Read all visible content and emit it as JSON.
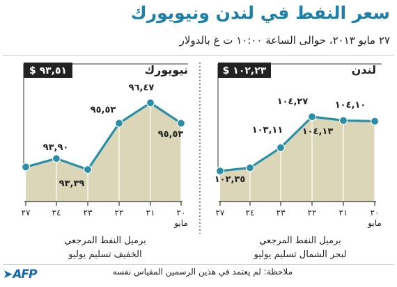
{
  "header": {
    "title": "سعر النفط في لندن ونيويورك",
    "subtitle": "٢٧ مايو ٢٠١٣، حوالى الساعة ١٠:٠٠ ت غ بالدولار"
  },
  "colors": {
    "line": "#2a8fa6",
    "fill": "#dcd6b8",
    "title": "#1f7fa6",
    "axis": "#333333"
  },
  "chart_data": [
    {
      "type": "area",
      "panel_label": "نيويورك",
      "current_price": "$ ٩٣,٥١",
      "x_labels": [
        "٢٧",
        "٢٤",
        "٢٣",
        "٢٢",
        "٢١",
        "٢٠"
      ],
      "month_label": "مايو",
      "series": [
        {
          "values": [
            93.51,
            93.9,
            93.39,
            95.53,
            96.47,
            95.53
          ],
          "labels": [
            "",
            "٩٣,٩٠",
            "٩٣,٣٩",
            "٩٥,٥٣",
            "٩٦,٤٧",
            "٩٥,٥٣"
          ]
        }
      ],
      "caption": [
        "برميل النفط المرجعي",
        "الخفيف تسليم يوليو"
      ]
    },
    {
      "type": "area",
      "panel_label": "لندن",
      "current_price": "$ ١٠٢,٢٣",
      "x_labels": [
        "٢٧",
        "٢٤",
        "٢٣",
        "٢٢",
        "٢١",
        "٢٠"
      ],
      "month_label": "مايو",
      "series": [
        {
          "values": [
            102.23,
            102.35,
            103.11,
            104.27,
            104.13,
            104.1
          ],
          "labels": [
            "",
            "١٠٢,٣٥",
            "١٠٣,١١",
            "١٠٤,٢٧",
            "١٠٤,١٣",
            "١٠٤,١٠"
          ]
        }
      ],
      "caption": [
        "برميل النفط المرجعي",
        "لبحر الشمال تسليم يوليو"
      ]
    }
  ],
  "footer": {
    "note": "ملاحظة: لم يعتمد في هذين الرسمين المقياس نفسه",
    "logo": "AFP"
  }
}
